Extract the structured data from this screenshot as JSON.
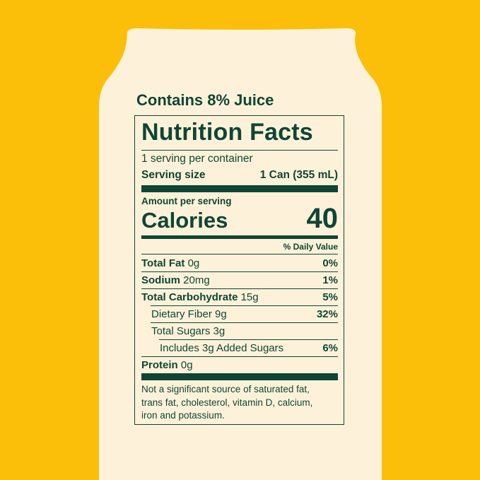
{
  "colors": {
    "background": "#FBBF0A",
    "can": "#FDF2D9",
    "ink": "#0F4535"
  },
  "juice_note": "Contains 8% Juice",
  "label": {
    "title": "Nutrition Facts",
    "servings": "1 serving per container",
    "serving_size_label": "Serving size",
    "serving_size_value": "1 Can (355 mL)",
    "amount_per_serving": "Amount per serving",
    "calories_label": "Calories",
    "calories_value": "40",
    "daily_value_header": "% Daily Value",
    "rows": [
      {
        "name": "Total Fat",
        "amount": "0g",
        "dv": "0%"
      },
      {
        "name": "Sodium",
        "amount": "20mg",
        "dv": "1%"
      },
      {
        "name": "Total Carbohydrate",
        "amount": "15g",
        "dv": "5%"
      },
      {
        "name": "Dietary Fiber 9g",
        "amount": "",
        "dv": "32%"
      },
      {
        "name": "Total Sugars 3g",
        "amount": "",
        "dv": ""
      },
      {
        "name": "Includes 3g Added Sugars",
        "amount": "",
        "dv": "6%"
      },
      {
        "name": "Protein",
        "amount": "0g",
        "dv": ""
      }
    ],
    "footnote": [
      "Not a significant source of saturated fat,",
      "trans fat, cholesterol, vitamin D, calcium,",
      "iron and potassium."
    ]
  }
}
